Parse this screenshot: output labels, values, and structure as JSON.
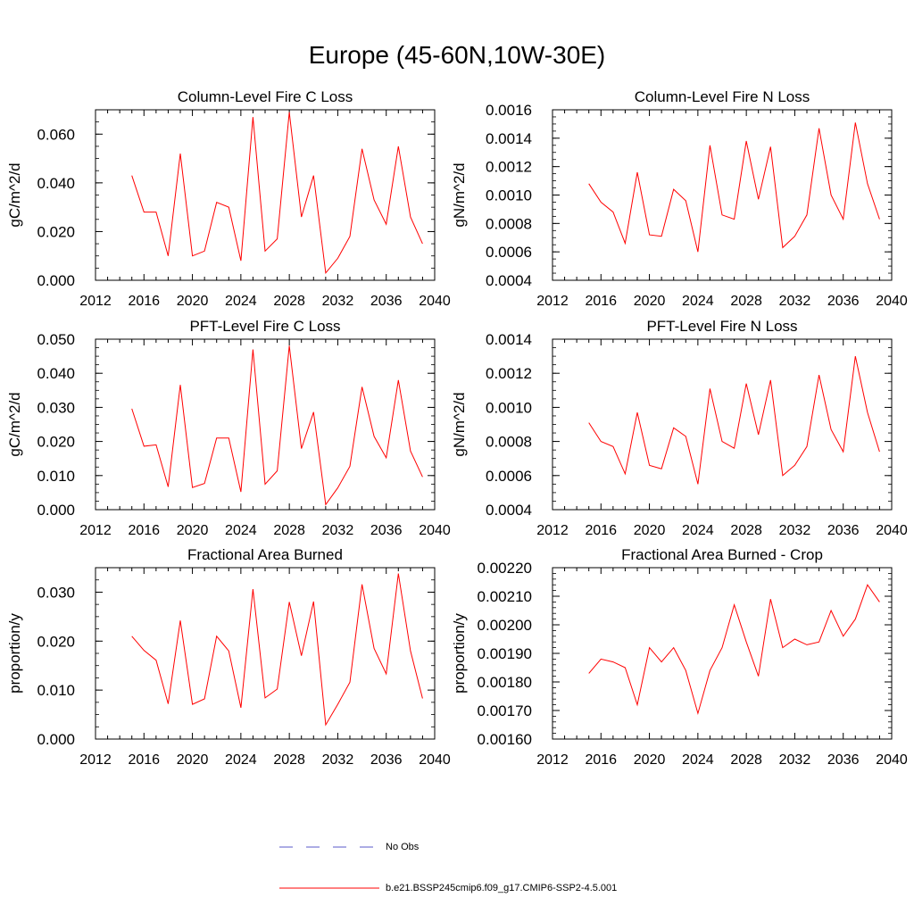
{
  "title": "Europe (45-60N,10W-30E)",
  "chart_data": [
    {
      "type": "line",
      "title": "Column-Level Fire C Loss",
      "ylabel": "gC/m^2/d",
      "xlim": [
        2012,
        2040
      ],
      "ylim": [
        0.0,
        0.07
      ],
      "xticks": [
        "2012",
        "2016",
        "2020",
        "2024",
        "2028",
        "2032",
        "2036",
        "2040"
      ],
      "yticks": [
        "0.000",
        "0.020",
        "0.040",
        "0.060"
      ],
      "yticks_values": [
        0.0,
        0.02,
        0.04,
        0.06
      ],
      "minor_y_step": 0.005,
      "x": [
        2015,
        2016,
        2017,
        2018,
        2019,
        2020,
        2021,
        2022,
        2023,
        2024,
        2025,
        2026,
        2027,
        2028,
        2029,
        2030,
        2031,
        2032,
        2033,
        2034,
        2035,
        2036,
        2037,
        2038,
        2039
      ],
      "series": [
        {
          "values": [
            0.043,
            0.028,
            0.028,
            0.01,
            0.052,
            0.01,
            0.012,
            0.032,
            0.03,
            0.008,
            0.067,
            0.012,
            0.017,
            0.069,
            0.026,
            0.043,
            0.003,
            0.009,
            0.018,
            0.054,
            0.033,
            0.023,
            0.055,
            0.026,
            0.015
          ]
        }
      ]
    },
    {
      "type": "line",
      "title": "Column-Level Fire N Loss",
      "ylabel": "gN/m^2/d",
      "xlim": [
        2012,
        2040
      ],
      "ylim": [
        0.0004,
        0.0016
      ],
      "xticks": [
        "2012",
        "2016",
        "2020",
        "2024",
        "2028",
        "2032",
        "2036",
        "2040"
      ],
      "yticks": [
        "0.0004",
        "0.0006",
        "0.0008",
        "0.0010",
        "0.0012",
        "0.0014",
        "0.0016"
      ],
      "yticks_values": [
        0.0004,
        0.0006,
        0.0008,
        0.001,
        0.0012,
        0.0014,
        0.0016
      ],
      "minor_y_step": 5e-05,
      "x": [
        2015,
        2016,
        2017,
        2018,
        2019,
        2020,
        2021,
        2022,
        2023,
        2024,
        2025,
        2026,
        2027,
        2028,
        2029,
        2030,
        2031,
        2032,
        2033,
        2034,
        2035,
        2036,
        2037,
        2038,
        2039
      ],
      "series": [
        {
          "values": [
            0.00108,
            0.00095,
            0.00088,
            0.00066,
            0.00116,
            0.00072,
            0.00071,
            0.00104,
            0.00096,
            0.0006,
            0.00135,
            0.00086,
            0.00083,
            0.00138,
            0.00097,
            0.00134,
            0.00063,
            0.00071,
            0.00086,
            0.00147,
            0.001,
            0.00083,
            0.00151,
            0.00108,
            0.00083
          ]
        }
      ]
    },
    {
      "type": "line",
      "title": "PFT-Level Fire C Loss",
      "ylabel": "gC/m^2/d",
      "xlim": [
        2012,
        2040
      ],
      "ylim": [
        0.0,
        0.05
      ],
      "xticks": [
        "2012",
        "2016",
        "2020",
        "2024",
        "2028",
        "2032",
        "2036",
        "2040"
      ],
      "yticks": [
        "0.000",
        "0.010",
        "0.020",
        "0.030",
        "0.040",
        "0.050"
      ],
      "yticks_values": [
        0.0,
        0.01,
        0.02,
        0.03,
        0.04,
        0.05
      ],
      "minor_y_step": 0.0025,
      "x": [
        2015,
        2016,
        2017,
        2018,
        2019,
        2020,
        2021,
        2022,
        2023,
        2024,
        2025,
        2026,
        2027,
        2028,
        2029,
        2030,
        2031,
        2032,
        2033,
        2034,
        2035,
        2036,
        2037,
        2038,
        2039
      ],
      "series": [
        {
          "values": [
            0.0296,
            0.0186,
            0.019,
            0.0067,
            0.0366,
            0.0065,
            0.0077,
            0.021,
            0.021,
            0.0052,
            0.047,
            0.0075,
            0.0114,
            0.0481,
            0.0179,
            0.0286,
            0.0015,
            0.0064,
            0.0127,
            0.036,
            0.0215,
            0.0152,
            0.038,
            0.0172,
            0.0096
          ]
        }
      ]
    },
    {
      "type": "line",
      "title": "PFT-Level Fire N Loss",
      "ylabel": "gN/m^2/d",
      "xlim": [
        2012,
        2040
      ],
      "ylim": [
        0.0004,
        0.0014
      ],
      "xticks": [
        "2012",
        "2016",
        "2020",
        "2024",
        "2028",
        "2032",
        "2036",
        "2040"
      ],
      "yticks": [
        "0.0004",
        "0.0006",
        "0.0008",
        "0.0010",
        "0.0012",
        "0.0014"
      ],
      "yticks_values": [
        0.0004,
        0.0006,
        0.0008,
        0.001,
        0.0012,
        0.0014
      ],
      "minor_y_step": 5e-05,
      "x": [
        2015,
        2016,
        2017,
        2018,
        2019,
        2020,
        2021,
        2022,
        2023,
        2024,
        2025,
        2026,
        2027,
        2028,
        2029,
        2030,
        2031,
        2032,
        2033,
        2034,
        2035,
        2036,
        2037,
        2038,
        2039
      ],
      "series": [
        {
          "values": [
            0.00091,
            0.0008,
            0.00077,
            0.00061,
            0.00097,
            0.00066,
            0.00064,
            0.00088,
            0.00083,
            0.00055,
            0.00111,
            0.0008,
            0.00076,
            0.00114,
            0.00084,
            0.00116,
            0.0006,
            0.00066,
            0.00077,
            0.00119,
            0.00087,
            0.00074,
            0.0013,
            0.00097,
            0.00074
          ]
        }
      ]
    },
    {
      "type": "line",
      "title": "Fractional Area Burned",
      "ylabel": "proportion/y",
      "xlim": [
        2012,
        2040
      ],
      "ylim": [
        0.0,
        0.035
      ],
      "xticks": [
        "2012",
        "2016",
        "2020",
        "2024",
        "2028",
        "2032",
        "2036",
        "2040"
      ],
      "yticks": [
        "0.000",
        "0.010",
        "0.020",
        "0.030"
      ],
      "yticks_values": [
        0.0,
        0.01,
        0.02,
        0.03
      ],
      "minor_y_step": 0.0025,
      "x": [
        2015,
        2016,
        2017,
        2018,
        2019,
        2020,
        2021,
        2022,
        2023,
        2024,
        2025,
        2026,
        2027,
        2028,
        2029,
        2030,
        2031,
        2032,
        2033,
        2034,
        2035,
        2036,
        2037,
        2038,
        2039
      ],
      "series": [
        {
          "values": [
            0.021,
            0.0181,
            0.0161,
            0.0072,
            0.0242,
            0.0071,
            0.0082,
            0.021,
            0.018,
            0.0064,
            0.0306,
            0.0084,
            0.0102,
            0.028,
            0.017,
            0.0281,
            0.0029,
            0.0071,
            0.0116,
            0.0316,
            0.0185,
            0.0133,
            0.0338,
            0.018,
            0.0083
          ]
        }
      ]
    },
    {
      "type": "line",
      "title": "Fractional Area Burned - Crop",
      "ylabel": "proportion/y",
      "xlim": [
        2012,
        2040
      ],
      "ylim": [
        0.0016,
        0.0022
      ],
      "xticks": [
        "2012",
        "2016",
        "2020",
        "2024",
        "2028",
        "2032",
        "2036",
        "2040"
      ],
      "yticks": [
        "0.00160",
        "0.00170",
        "0.00180",
        "0.00190",
        "0.00200",
        "0.00210",
        "0.00220"
      ],
      "yticks_values": [
        0.0016,
        0.0017,
        0.0018,
        0.0019,
        0.002,
        0.0021,
        0.0022
      ],
      "minor_y_step": 2e-05,
      "x": [
        2015,
        2016,
        2017,
        2018,
        2019,
        2020,
        2021,
        2022,
        2023,
        2024,
        2025,
        2026,
        2027,
        2028,
        2029,
        2030,
        2031,
        2032,
        2033,
        2034,
        2035,
        2036,
        2037,
        2038,
        2039
      ],
      "series": [
        {
          "values": [
            0.00183,
            0.00188,
            0.00187,
            0.00185,
            0.00172,
            0.00192,
            0.00187,
            0.00192,
            0.00184,
            0.00169,
            0.00184,
            0.00192,
            0.00207,
            0.00194,
            0.00182,
            0.00209,
            0.00192,
            0.00195,
            0.00193,
            0.00194,
            0.00205,
            0.00196,
            0.00202,
            0.00214,
            0.00208
          ]
        }
      ]
    }
  ],
  "legend": [
    {
      "label": "No Obs",
      "color": "#5a5ac8",
      "dash": true
    },
    {
      "label": "b.e21.BSSP245cmip6.f09_g17.CMIP6-SSP2-4.5.001",
      "color": "#ff0000",
      "dash": false
    }
  ]
}
